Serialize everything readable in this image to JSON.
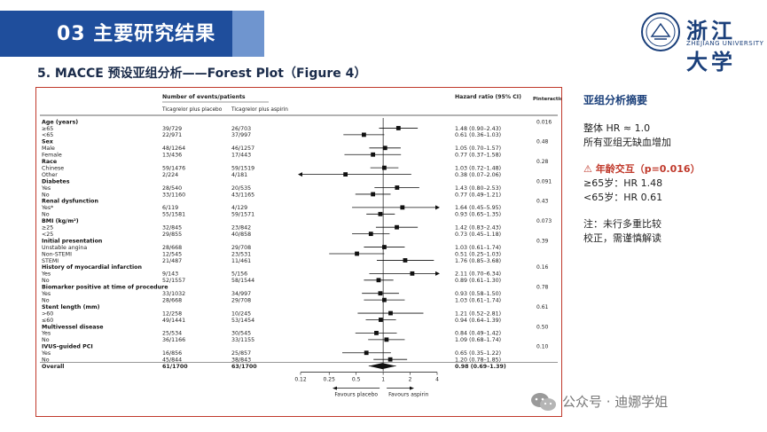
{
  "header": {
    "title": "03 主要研究结果",
    "logo_text": "浙江大学",
    "logo_subtext": "ZHEJIANG UNIVERSITY"
  },
  "subtitle": "5. MACCE 预设亚组分析——Forest Plot（Figure 4）",
  "forest": {
    "col_events_header": "Number of events/patients",
    "col_ticagrelor": "Ticagrelor plus placebo",
    "col_aspirin": "Ticagrelor plus aspirin",
    "col_hr": "Hazard ratio (95% CI)",
    "col_p": "Pinteraction",
    "axis_ticks": [
      "0.12",
      "0.25",
      "0.5",
      "1",
      "2",
      "4"
    ],
    "favours_left": "Favours placebo",
    "favours_right": "Favours aspirin",
    "rows": [
      {
        "label": "Age (years)",
        "header": true,
        "p": "0.016"
      },
      {
        "label": "≥65",
        "a": "39/729",
        "b": "26/703",
        "hr": "1.48 (0.90–2.43)",
        "est": 1.48,
        "lo": 0.9,
        "hi": 2.43
      },
      {
        "label": "<65",
        "a": "22/971",
        "b": "37/997",
        "hr": "0.61 (0.36–1.03)",
        "est": 0.61,
        "lo": 0.36,
        "hi": 1.03
      },
      {
        "label": "Sex",
        "header": true,
        "p": "0.48"
      },
      {
        "label": "Male",
        "a": "48/1264",
        "b": "46/1257",
        "hr": "1.05 (0.70–1.57)",
        "est": 1.05,
        "lo": 0.7,
        "hi": 1.57
      },
      {
        "label": "Female",
        "a": "13/436",
        "b": "17/443",
        "hr": "0.77 (0.37–1.58)",
        "est": 0.77,
        "lo": 0.37,
        "hi": 1.58
      },
      {
        "label": "Race",
        "header": true,
        "p": "0.28"
      },
      {
        "label": "Chinese",
        "a": "59/1476",
        "b": "59/1519",
        "hr": "1.03 (0.72–1.48)",
        "est": 1.03,
        "lo": 0.72,
        "hi": 1.48
      },
      {
        "label": "Other",
        "a": "2/224",
        "b": "4/181",
        "hr": "0.38 (0.07–2.06)",
        "est": 0.38,
        "lo": 0.07,
        "hi": 2.06
      },
      {
        "label": "Diabetes",
        "header": true,
        "p": "0.091"
      },
      {
        "label": "Yes",
        "a": "28/540",
        "b": "20/535",
        "hr": "1.43 (0.80–2.53)",
        "est": 1.43,
        "lo": 0.8,
        "hi": 2.53
      },
      {
        "label": "No",
        "a": "33/1160",
        "b": "43/1165",
        "hr": "0.77 (0.49–1.21)",
        "est": 0.77,
        "lo": 0.49,
        "hi": 1.21
      },
      {
        "label": "Renal dysfunction",
        "header": true,
        "p": "0.43"
      },
      {
        "label": "Yes*",
        "a": "6/119",
        "b": "4/129",
        "hr": "1.64 (0.45–5.95)",
        "est": 1.64,
        "lo": 0.45,
        "hi": 5.95
      },
      {
        "label": "No",
        "a": "55/1581",
        "b": "59/1571",
        "hr": "0.93 (0.65–1.35)",
        "est": 0.93,
        "lo": 0.65,
        "hi": 1.35
      },
      {
        "label": "BMI (kg/m²)",
        "header": true,
        "p": "0.073"
      },
      {
        "label": "≥25",
        "a": "32/845",
        "b": "23/842",
        "hr": "1.42 (0.83–2.43)",
        "est": 1.42,
        "lo": 0.83,
        "hi": 2.43
      },
      {
        "label": "<25",
        "a": "29/855",
        "b": "40/858",
        "hr": "0.73 (0.45–1.18)",
        "est": 0.73,
        "lo": 0.45,
        "hi": 1.18
      },
      {
        "label": "Initial presentation",
        "header": true,
        "p": "0.39"
      },
      {
        "label": "Unstable angina",
        "a": "28/668",
        "b": "29/708",
        "hr": "1.03 (0.61–1.74)",
        "est": 1.03,
        "lo": 0.61,
        "hi": 1.74
      },
      {
        "label": "Non-STEMI",
        "a": "12/545",
        "b": "23/531",
        "hr": "0.51 (0.25–1.03)",
        "est": 0.51,
        "lo": 0.25,
        "hi": 1.03
      },
      {
        "label": "STEMI",
        "a": "21/487",
        "b": "11/461",
        "hr": "1.76 (0.85–3.68)",
        "est": 1.76,
        "lo": 0.85,
        "hi": 3.68
      },
      {
        "label": "History of myocardial infarction",
        "header": true,
        "p": "0.16"
      },
      {
        "label": "Yes",
        "a": "9/143",
        "b": "5/156",
        "hr": "2.11 (0.70–6.34)",
        "est": 2.11,
        "lo": 0.7,
        "hi": 6.34
      },
      {
        "label": "No",
        "a": "52/1557",
        "b": "58/1544",
        "hr": "0.89 (0.61–1.30)",
        "est": 0.89,
        "lo": 0.61,
        "hi": 1.3
      },
      {
        "label": "Biomarker positive at time of procedure",
        "header": true,
        "p": "0.78"
      },
      {
        "label": "Yes",
        "a": "33/1032",
        "b": "34/997",
        "hr": "0.93 (0.58–1.50)",
        "est": 0.93,
        "lo": 0.58,
        "hi": 1.5
      },
      {
        "label": "No",
        "a": "28/668",
        "b": "29/708",
        "hr": "1.03 (0.61–1.74)",
        "est": 1.03,
        "lo": 0.61,
        "hi": 1.74
      },
      {
        "label": "Stent length (mm)",
        "header": true,
        "p": "0.61"
      },
      {
        "label": ">60",
        "a": "12/258",
        "b": "10/245",
        "hr": "1.21 (0.52–2.81)",
        "est": 1.21,
        "lo": 0.52,
        "hi": 2.81
      },
      {
        "label": "≤60",
        "a": "49/1441",
        "b": "53/1454",
        "hr": "0.94 (0.64–1.39)",
        "est": 0.94,
        "lo": 0.64,
        "hi": 1.39
      },
      {
        "label": "Multivessel disease",
        "header": true,
        "p": "0.50"
      },
      {
        "label": "Yes",
        "a": "25/534",
        "b": "30/545",
        "hr": "0.84 (0.49–1.42)",
        "est": 0.84,
        "lo": 0.49,
        "hi": 1.42
      },
      {
        "label": "No",
        "a": "36/1166",
        "b": "33/1155",
        "hr": "1.09 (0.68–1.74)",
        "est": 1.09,
        "lo": 0.68,
        "hi": 1.74
      },
      {
        "label": "IVUS-guided PCI",
        "header": true,
        "p": "0.10"
      },
      {
        "label": "Yes",
        "a": "16/856",
        "b": "25/857",
        "hr": "0.65 (0.35–1.22)",
        "est": 0.65,
        "lo": 0.35,
        "hi": 1.22
      },
      {
        "label": "No",
        "a": "45/844",
        "b": "38/843",
        "hr": "1.20 (0.78–1.85)",
        "est": 1.2,
        "lo": 0.78,
        "hi": 1.85
      },
      {
        "label": "Overall",
        "overall": true,
        "a": "61/1700",
        "b": "63/1700",
        "hr": "0.98 (0.69–1.39)",
        "est": 0.98,
        "lo": 0.69,
        "hi": 1.39
      }
    ]
  },
  "sidebar": {
    "title": "亚组分析摘要",
    "line1": "整体 HR ≈ 1.0",
    "line2": "所有亚组无缺血增加",
    "warn": "⚠ 年龄交互（p=0.016）",
    "age_ge65": "≥65岁：HR 1.48",
    "age_lt65": "<65岁：HR 0.61",
    "note1": "注：未行多重比较",
    "note2": "校正，需谨慎解读"
  },
  "watermark": {
    "text": "公众号 · 迪娜学姐"
  },
  "colors": {
    "header_blue": "#1f4e9c",
    "header_light": "#6f95cf",
    "accent_red": "#c0392b",
    "logo_blue": "#1a3f7a"
  }
}
